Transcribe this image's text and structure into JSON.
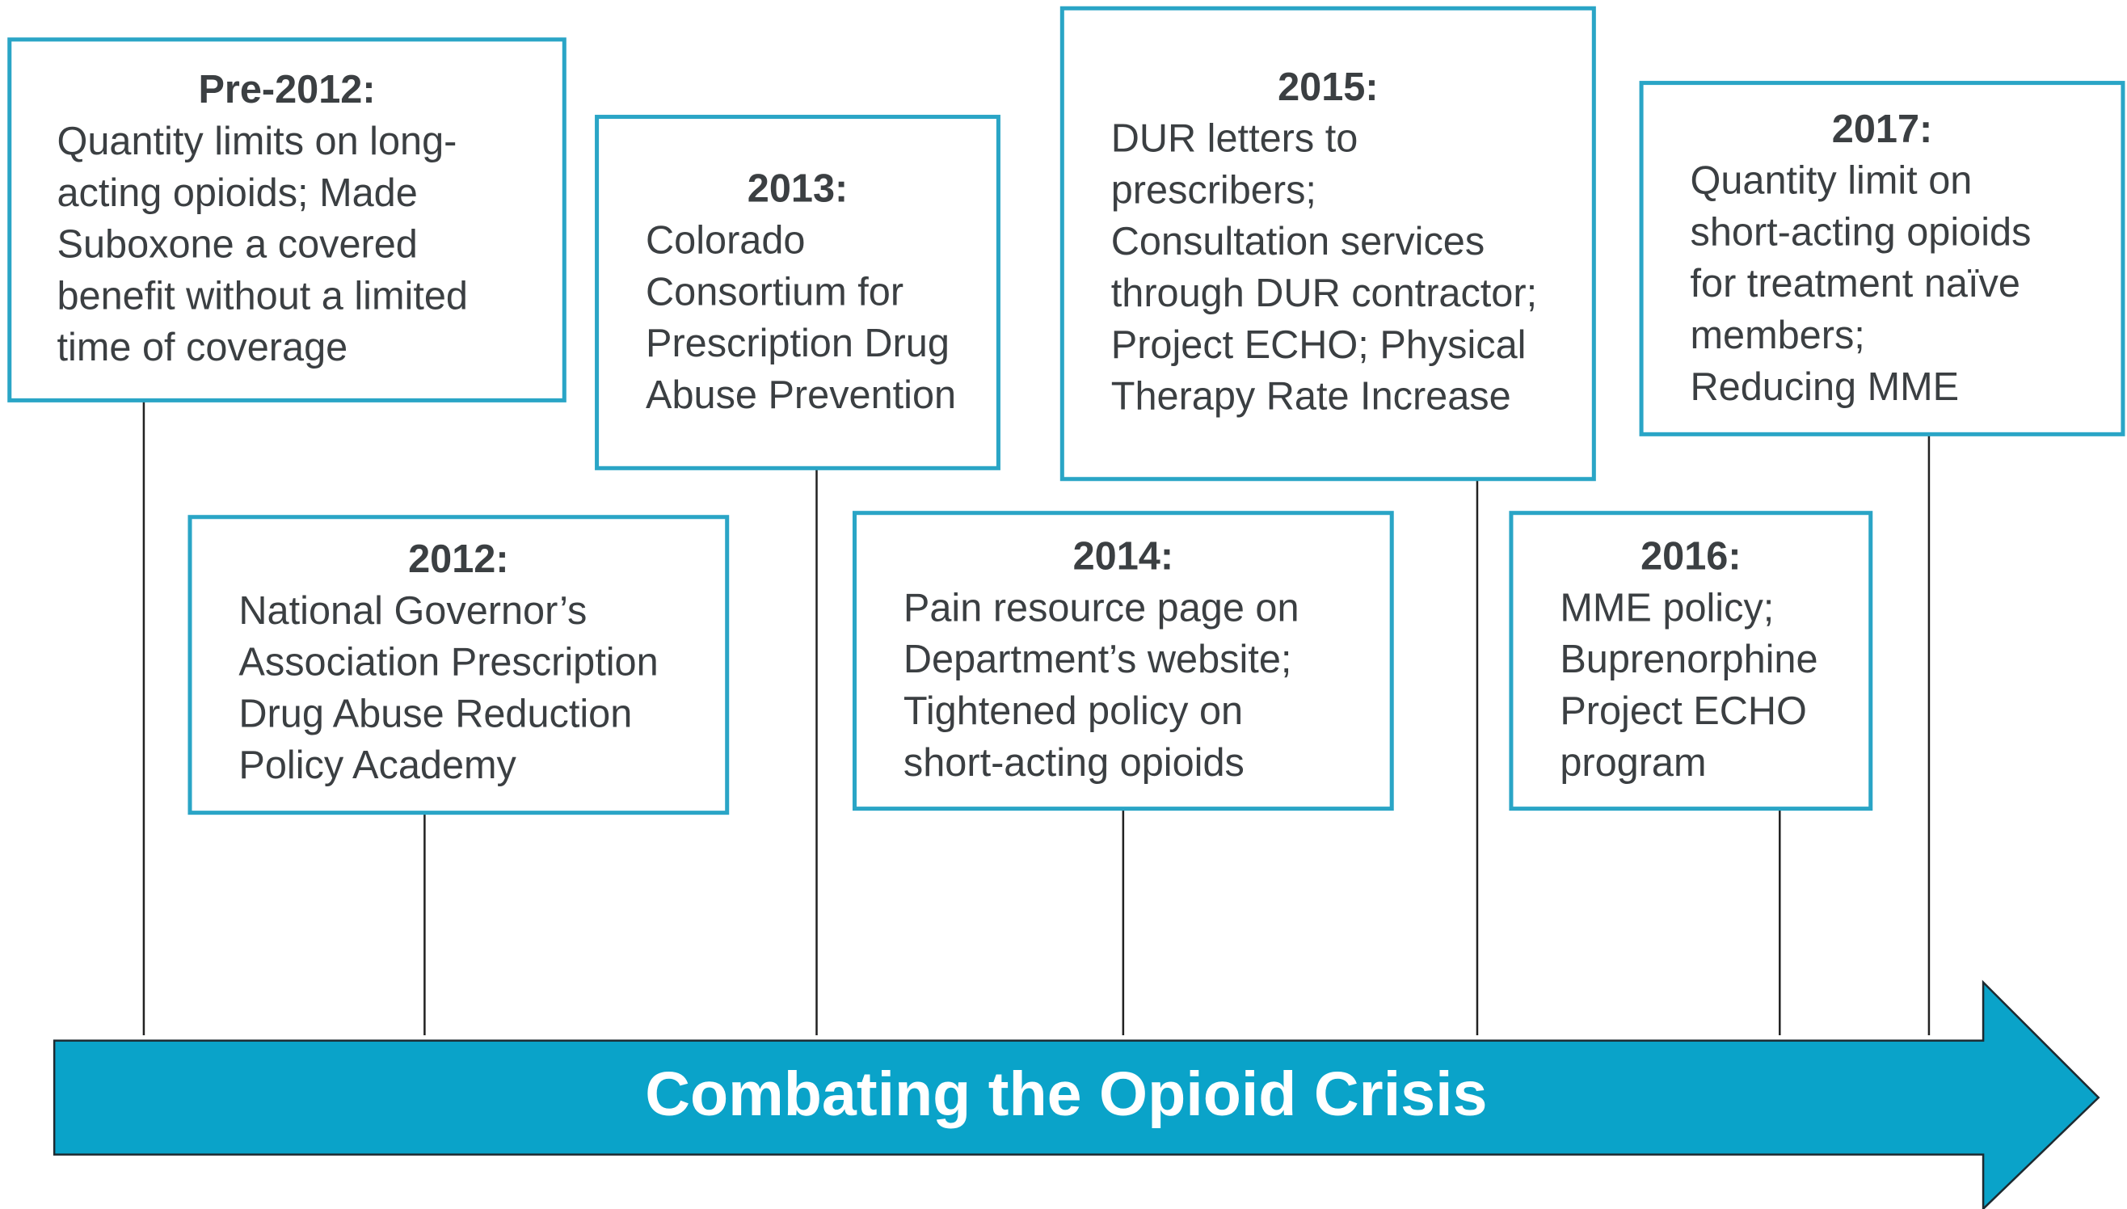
{
  "banner": "Combating the Opioid Crisis",
  "events": [
    {
      "year": "Pre-2012:",
      "lines": [
        "Quantity limits on long-",
        "acting opioids; Made",
        "Suboxone a covered",
        "benefit without a limited",
        "time of coverage"
      ]
    },
    {
      "year": "2012:",
      "lines": [
        "National Governor’s",
        "Association Prescription",
        "Drug Abuse Reduction",
        "Policy Academy"
      ]
    },
    {
      "year": "2013:",
      "lines": [
        "Colorado",
        "Consortium for",
        "Prescription Drug",
        "Abuse Prevention"
      ]
    },
    {
      "year": "2014:",
      "lines": [
        "Pain resource page on",
        "Department’s website;",
        "Tightened policy on",
        "short-acting opioids"
      ]
    },
    {
      "year": "2015:",
      "lines": [
        "DUR letters to",
        "prescribers;",
        "Consultation services",
        "through DUR contractor;",
        "Project ECHO; Physical",
        "Therapy Rate Increase"
      ]
    },
    {
      "year": "2016:",
      "lines": [
        "MME policy;",
        "Buprenorphine",
        "Project ECHO",
        "program"
      ]
    },
    {
      "year": "2017:",
      "lines": [
        "Quantity limit on",
        "short-acting opioids",
        "for treatment naïve",
        "members;",
        "Reducing MME"
      ]
    }
  ]
}
